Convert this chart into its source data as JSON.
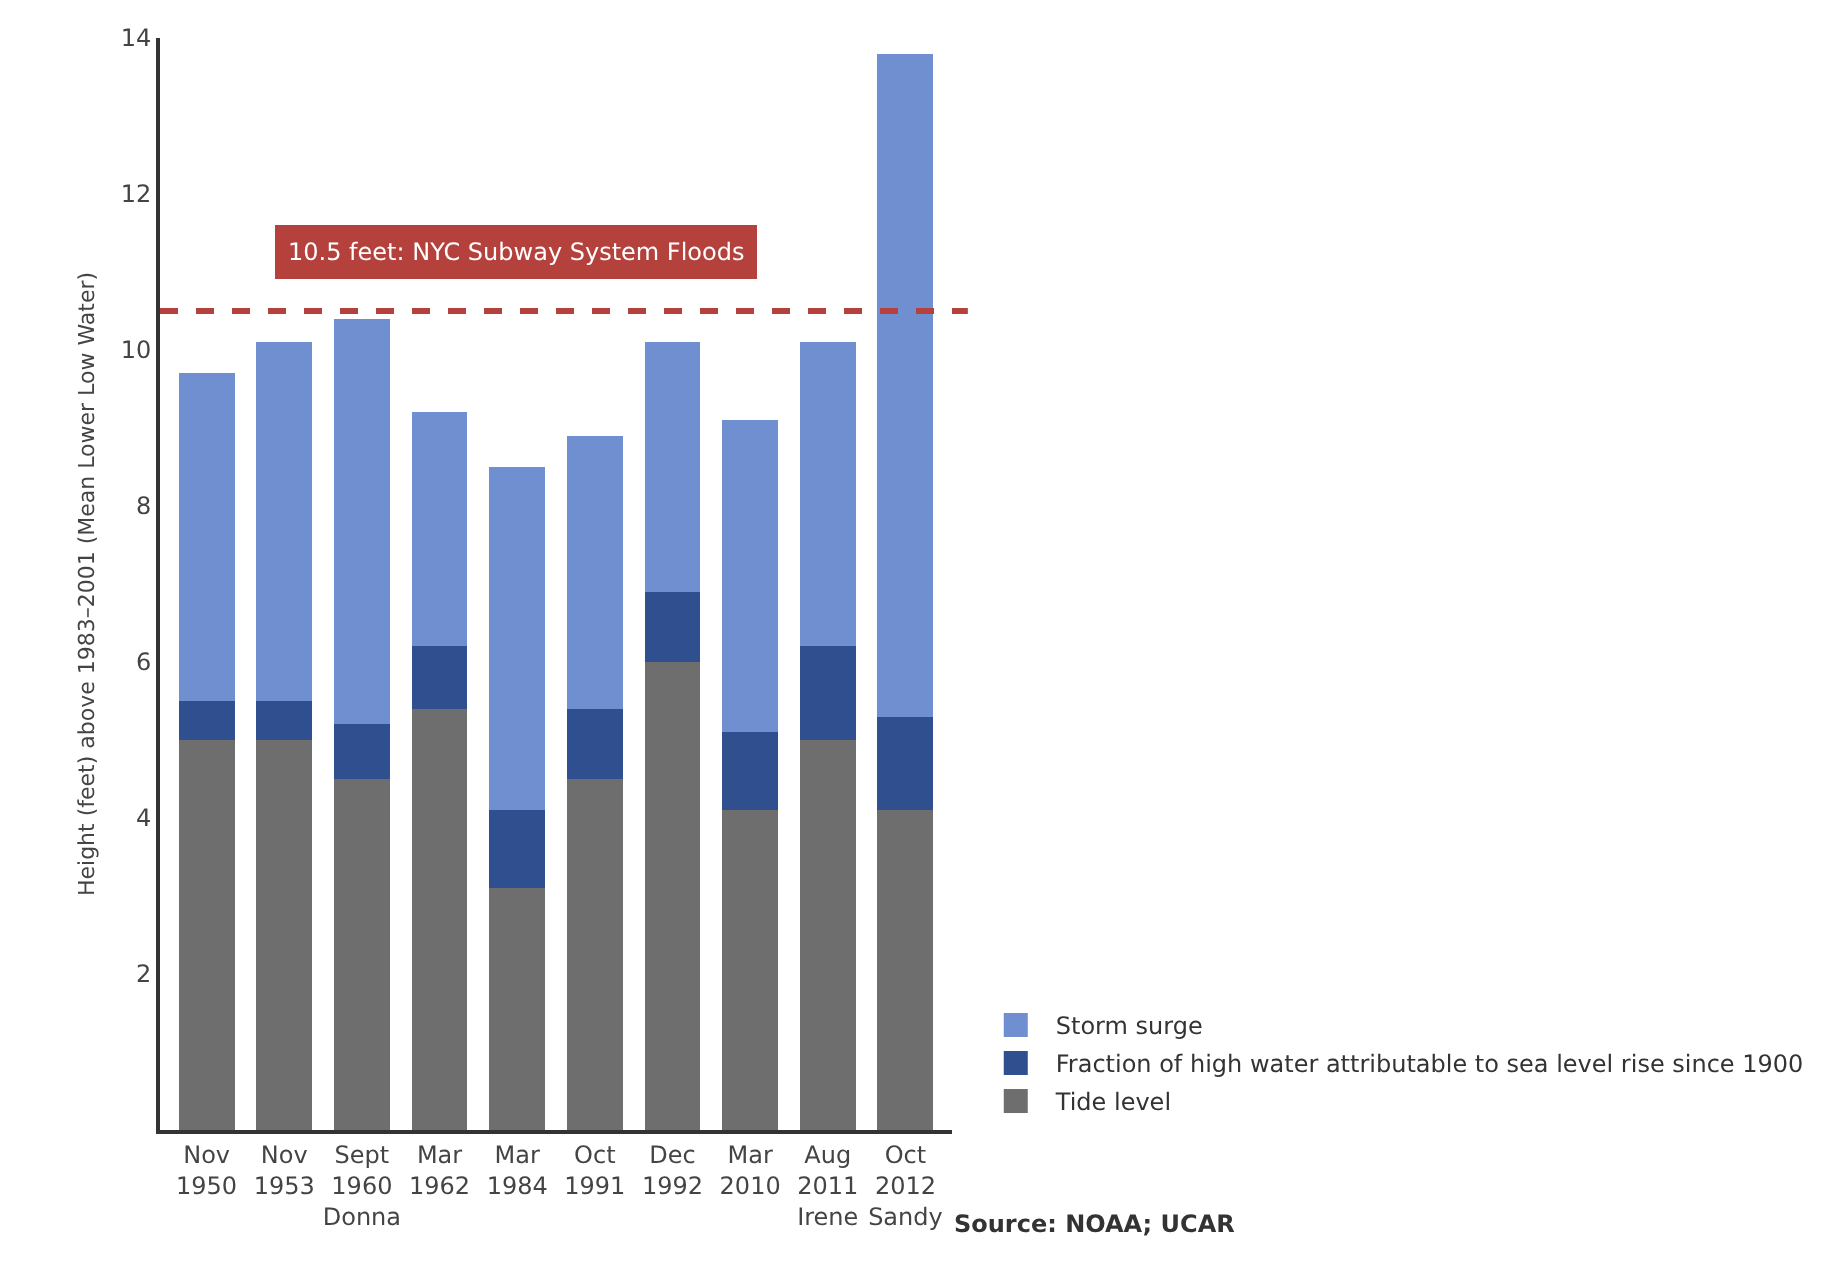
{
  "chart_data": {
    "type": "bar",
    "stacked": true,
    "ylabel": "Height (feet) above 1983–2001 (Mean Lower Low Water)",
    "categories": [
      "Nov\n1950",
      "Nov\n1953",
      "Sept\n1960\nDonna",
      "Mar\n1962",
      "Mar\n1984",
      "Oct\n1991",
      "Dec\n1992",
      "Mar\n2010",
      "Aug\n2011\nIrene",
      "Oct\n2012\nSandy"
    ],
    "series": [
      {
        "name": "Tide level",
        "color": "#6e6e6e",
        "values": [
          5.0,
          5.0,
          4.5,
          5.4,
          3.1,
          4.5,
          6.0,
          4.1,
          5.0,
          4.1
        ]
      },
      {
        "name": "Fraction of high water attributable to sea level rise since 1900",
        "color": "#2f4f8f",
        "values": [
          0.5,
          0.5,
          0.7,
          0.8,
          1.0,
          0.9,
          0.9,
          1.0,
          1.2,
          1.2
        ]
      },
      {
        "name": "Storm surge",
        "color": "#6f8fd0",
        "values": [
          4.2,
          4.6,
          5.2,
          3.0,
          4.4,
          3.5,
          3.2,
          4.0,
          3.9,
          8.5
        ]
      }
    ],
    "ylim": [
      0,
      14
    ],
    "yticks": [
      2,
      4,
      6,
      8,
      10,
      12,
      14
    ],
    "grid": false,
    "legend": "bottom right",
    "ref_lines": [
      {
        "axis": "y",
        "value": 10.5,
        "label": "10.5 feet: NYC Subway System Floods",
        "color": "#b5413d",
        "line_style": "dashed"
      }
    ],
    "annotations": [
      "Source: NOAA; UCAR"
    ]
  }
}
